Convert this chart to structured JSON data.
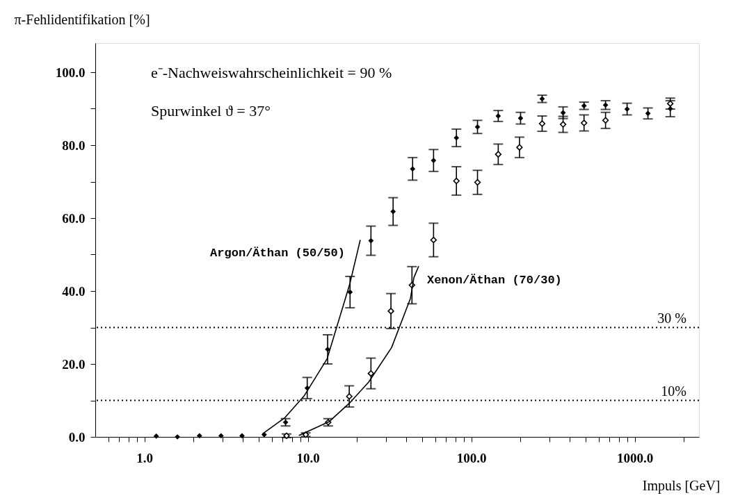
{
  "chart_data": {
    "type": "scatter",
    "xlabel": "Impuls [GeV]",
    "ylabel": "π-Fehlidentifikation [%]",
    "log": "x",
    "grid": false,
    "marker": "diamond",
    "xlim": [
      0.5,
      2470
    ],
    "ylim": [
      0,
      108
    ],
    "xticks": [
      {
        "value": 0.6,
        "label": null
      },
      {
        "value": 0.7,
        "label": null
      },
      {
        "value": 0.8,
        "label": null
      },
      {
        "value": 0.9,
        "label": null
      },
      {
        "value": 1,
        "label": "1.0"
      },
      {
        "value": 2,
        "label": null
      },
      {
        "value": 3,
        "label": null
      },
      {
        "value": 4,
        "label": null
      },
      {
        "value": 5,
        "label": null
      },
      {
        "value": 6,
        "label": null
      },
      {
        "value": 7,
        "label": null
      },
      {
        "value": 8,
        "label": null
      },
      {
        "value": 9,
        "label": null
      },
      {
        "value": 10,
        "label": "10.0"
      },
      {
        "value": 20,
        "label": null
      },
      {
        "value": 30,
        "label": null
      },
      {
        "value": 40,
        "label": null
      },
      {
        "value": 50,
        "label": null
      },
      {
        "value": 60,
        "label": null
      },
      {
        "value": 70,
        "label": null
      },
      {
        "value": 80,
        "label": null
      },
      {
        "value": 90,
        "label": null
      },
      {
        "value": 100,
        "label": "100.0"
      },
      {
        "value": 200,
        "label": null
      },
      {
        "value": 300,
        "label": null
      },
      {
        "value": 400,
        "label": null
      },
      {
        "value": 500,
        "label": null
      },
      {
        "value": 600,
        "label": null
      },
      {
        "value": 700,
        "label": null
      },
      {
        "value": 800,
        "label": null
      },
      {
        "value": 900,
        "label": null
      },
      {
        "value": 1000,
        "label": "1000.0"
      },
      {
        "value": 2000,
        "label": null
      }
    ],
    "yticks": [
      {
        "value": 0,
        "label": "0.0"
      },
      {
        "value": 10,
        "label": null
      },
      {
        "value": 20,
        "label": "20.0"
      },
      {
        "value": 30,
        "label": null
      },
      {
        "value": 40,
        "label": "40.0"
      },
      {
        "value": 50,
        "label": null
      },
      {
        "value": 60,
        "label": "60.0"
      },
      {
        "value": 70,
        "label": null
      },
      {
        "value": 80,
        "label": "80.0"
      },
      {
        "value": 90,
        "label": null
      },
      {
        "value": 100,
        "label": "100.0"
      }
    ],
    "series": [
      {
        "color": "#000000",
        "x": [
          1.18,
          1.59,
          2.17,
          2.94,
          3.95,
          5.4,
          7.3,
          9.9,
          13.2,
          18.1,
          24.3,
          33.2,
          43.7,
          58.7,
          81,
          109,
          146,
          200,
          271,
          364,
          489,
          662,
          897,
          1203,
          1648
        ],
        "values": [
          0.2,
          0,
          0.3,
          0.3,
          0.3,
          0.6,
          4.0,
          13.4,
          24.0,
          39.7,
          53.8,
          61.8,
          73.5,
          75.8,
          82.0,
          85.0,
          88.0,
          87.4,
          92.7,
          88.9,
          90.8,
          91.0,
          89.9,
          88.7,
          90.0
        ],
        "errors": [
          null,
          null,
          null,
          null,
          null,
          null,
          1,
          2.9,
          4,
          4.3,
          4,
          3.8,
          3.1,
          3,
          2.4,
          1.8,
          1.5,
          1.6,
          1,
          1.6,
          1,
          1.2,
          1.6,
          1.5,
          2.2
        ]
      },
      {
        "color": "#000000",
        "x": [
          7.4,
          9.7,
          13.3,
          17.9,
          24.3,
          32.2,
          43.3,
          58.7,
          81,
          109,
          146,
          197,
          271,
          364,
          489,
          662,
          1648
        ],
        "values": [
          0.3,
          0.6,
          4.0,
          11.1,
          17.4,
          34.5,
          41.6,
          54.0,
          70.2,
          69.8,
          77.5,
          79.4,
          85.9,
          85.7,
          86.1,
          86.8,
          91.4
        ],
        "errors": [
          0.5,
          0.5,
          1,
          2.9,
          4.2,
          4.8,
          5.1,
          4.6,
          3.9,
          3.3,
          2.8,
          2.8,
          2.1,
          2.2,
          2.2,
          2.2,
          1.5
        ]
      },
      {
        "type": "line",
        "name": "Argon/Äthan (50/50)",
        "color": "#000000",
        "marker": "none",
        "x": [
          5.26,
          7.2,
          9.5,
          13.1,
          18,
          20.9
        ],
        "values": [
          0.8,
          5.2,
          11.3,
          21.4,
          41.8,
          54
        ]
      },
      {
        "type": "line",
        "name": "Xenon/Äthan (70/30)",
        "color": "#000000",
        "marker": "none",
        "x": [
          8.8,
          13.5,
          18,
          23.5,
          32.5,
          42.4,
          44.5,
          47.6
        ],
        "values": [
          0.4,
          4.2,
          9.3,
          15,
          24.5,
          38,
          43.7,
          46.8
        ]
      }
    ],
    "ref_lines": [
      {
        "axis": "y",
        "value": 30,
        "label": "30 %",
        "line_style": "dotted"
      },
      {
        "axis": "y",
        "value": 10,
        "label": "10%",
        "line_style": "dotted"
      }
    ],
    "annotations": [
      "e⁻-Nachweiswahrscheinlichkeit = 90 %",
      "Spurwinkel ϑ = 37°"
    ]
  }
}
